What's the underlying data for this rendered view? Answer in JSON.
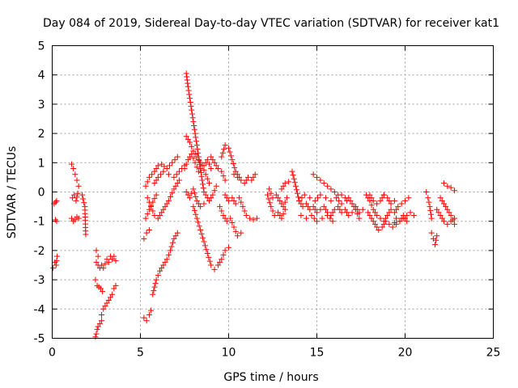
{
  "chart_data": {
    "type": "scatter",
    "title": "Day 084 of 2019, Sidereal Day-to-day VTEC variation (SDTVAR) for receiver kat1",
    "xlabel": "GPS time / hours",
    "ylabel": "SDTVAR / TECUs",
    "xlim": [
      0,
      25
    ],
    "ylim": [
      -5,
      5
    ],
    "xticks": [
      0,
      5,
      10,
      15,
      20,
      25
    ],
    "yticks": [
      -5,
      -4,
      -3,
      -2,
      -1,
      0,
      1,
      2,
      3,
      4,
      5
    ],
    "grid": true,
    "marker": "plus",
    "color": "#ff0000",
    "segments": [
      {
        "x": [
          0.05,
          0.15,
          0.22,
          0.28
        ],
        "y": [
          -2.6,
          -2.4,
          -2.5,
          -2.2
        ]
      },
      {
        "x": [
          0.1,
          0.2,
          0.25
        ],
        "y": [
          -0.4,
          -0.35,
          -0.3
        ]
      },
      {
        "x": [
          0.18,
          0.25
        ],
        "y": [
          -0.95,
          -1.0
        ]
      },
      {
        "x": [
          1.1,
          1.2,
          1.3,
          1.4,
          1.5
        ],
        "y": [
          0.95,
          0.8,
          0.6,
          0.4,
          0.2
        ]
      },
      {
        "x": [
          1.15,
          1.25,
          1.35,
          1.45
        ],
        "y": [
          -0.2,
          -0.1,
          -0.3,
          -0.05
        ]
      },
      {
        "x": [
          1.1,
          1.2,
          1.3,
          1.4,
          1.5
        ],
        "y": [
          -0.9,
          -1.0,
          -0.95,
          -0.85,
          -0.9
        ]
      },
      {
        "x": [
          1.7,
          1.85,
          1.9
        ],
        "y": [
          -0.1,
          -0.5,
          -1.45
        ]
      },
      {
        "x": [
          2.45,
          2.5,
          2.55,
          2.6,
          2.7,
          2.8
        ],
        "y": [
          -4.95,
          -4.85,
          -4.7,
          -4.6,
          -4.5,
          -4.4
        ]
      },
      {
        "x": [
          2.45,
          2.55,
          2.65,
          2.75,
          2.85
        ],
        "y": [
          -3.0,
          -3.2,
          -3.25,
          -3.3,
          -3.4
        ]
      },
      {
        "x": [
          2.5,
          2.6,
          2.7,
          2.8,
          2.9,
          3.0,
          3.1,
          3.2,
          3.3,
          3.4,
          3.5,
          3.6
        ],
        "y": [
          -2.4,
          -2.5,
          -2.6,
          -2.5,
          -2.6,
          -2.45,
          -2.3,
          -2.4,
          -2.2,
          -2.3,
          -2.2,
          -2.35
        ]
      },
      {
        "x": [
          2.5,
          2.6
        ],
        "y": [
          -2.0,
          -2.2
        ]
      },
      {
        "x": [
          2.8,
          2.9,
          3.0,
          3.1,
          3.2,
          3.3,
          3.4,
          3.5,
          3.6
        ],
        "y": [
          -4.2,
          -4.0,
          -3.9,
          -3.8,
          -3.7,
          -3.6,
          -3.5,
          -3.3,
          -3.2
        ]
      },
      {
        "x": [
          5.2,
          5.35,
          5.5,
          5.6
        ],
        "y": [
          -4.3,
          -4.4,
          -4.2,
          -4.05
        ]
      },
      {
        "x": [
          5.2,
          5.35,
          5.5
        ],
        "y": [
          -1.6,
          -1.4,
          -1.3
        ]
      },
      {
        "x": [
          5.3,
          5.5,
          5.7,
          5.9
        ],
        "y": [
          -0.9,
          -0.6,
          -0.35,
          -0.1
        ]
      },
      {
        "x": [
          5.7,
          5.9,
          6.1,
          6.3,
          6.5,
          6.7,
          6.9,
          7.1
        ],
        "y": [
          -3.5,
          -3.0,
          -2.7,
          -2.5,
          -2.3,
          -2.0,
          -1.6,
          -1.4
        ]
      },
      {
        "x": [
          5.3,
          5.5,
          5.8,
          6.0,
          6.2,
          6.5,
          6.8,
          7.1
        ],
        "y": [
          0.2,
          0.5,
          0.7,
          0.9,
          0.95,
          0.8,
          1.0,
          1.2
        ]
      },
      {
        "x": [
          5.4,
          5.6,
          5.8,
          6.0,
          6.3,
          6.6,
          6.9,
          7.2
        ],
        "y": [
          -0.2,
          -0.5,
          -0.8,
          -0.9,
          -0.6,
          -0.3,
          0.1,
          0.4
        ]
      },
      {
        "x": [
          5.8,
          6.0,
          6.3,
          6.6,
          6.9,
          7.2,
          7.5
        ],
        "y": [
          0.3,
          0.5,
          0.7,
          0.6,
          0.5,
          0.7,
          0.9
        ]
      },
      {
        "x": [
          7.6,
          7.7,
          7.8,
          7.9,
          8.0,
          8.1,
          8.2,
          8.3,
          8.4,
          8.5,
          8.6
        ],
        "y": [
          4.05,
          3.6,
          3.2,
          2.8,
          2.4,
          2.0,
          1.6,
          1.2,
          0.8,
          0.4,
          0.0
        ]
      },
      {
        "x": [
          7.6,
          7.8,
          8.0,
          8.2,
          8.4,
          8.6,
          8.8,
          9.0
        ],
        "y": [
          1.9,
          1.7,
          1.4,
          1.2,
          1.0,
          0.9,
          1.1,
          0.8
        ]
      },
      {
        "x": [
          7.5,
          7.7,
          7.9,
          8.1,
          8.3,
          8.5,
          8.7,
          8.9
        ],
        "y": [
          0.8,
          1.1,
          1.3,
          1.0,
          0.7,
          0.9,
          0.6,
          0.3
        ]
      },
      {
        "x": [
          7.6,
          7.8,
          8.0,
          8.2,
          8.4,
          8.6
        ],
        "y": [
          0.0,
          -0.2,
          0.1,
          -0.3,
          -0.5,
          -0.4
        ]
      },
      {
        "x": [
          8.0,
          8.2,
          8.4,
          8.6,
          8.8,
          9.0,
          9.2
        ],
        "y": [
          -0.5,
          -0.9,
          -1.3,
          -1.7,
          -2.1,
          -2.5,
          -2.65
        ]
      },
      {
        "x": [
          8.7,
          8.9,
          9.1,
          9.3
        ],
        "y": [
          -0.1,
          -0.3,
          -0.1,
          0.2
        ]
      },
      {
        "x": [
          9.0,
          9.2,
          9.4,
          9.6,
          9.8
        ],
        "y": [
          1.2,
          1.0,
          0.8,
          0.7,
          0.4
        ]
      },
      {
        "x": [
          9.4,
          9.6,
          9.8,
          10.0
        ],
        "y": [
          -2.5,
          -2.3,
          -2.0,
          -1.9
        ]
      },
      {
        "x": [
          9.5,
          9.7,
          9.9,
          10.1,
          10.3,
          10.5,
          10.7
        ],
        "y": [
          -0.5,
          -0.8,
          -1.0,
          -0.9,
          -1.2,
          -1.5,
          -1.4
        ]
      },
      {
        "x": [
          9.6,
          9.8,
          10.0,
          10.2,
          10.4,
          10.6
        ],
        "y": [
          1.2,
          1.6,
          1.5,
          1.1,
          0.7,
          0.5
        ]
      },
      {
        "x": [
          9.8,
          10.0,
          10.2,
          10.4
        ],
        "y": [
          -0.1,
          -0.3,
          -0.2,
          -0.4
        ]
      },
      {
        "x": [
          10.3,
          10.5,
          10.7,
          10.9,
          11.1,
          11.3,
          11.5
        ],
        "y": [
          0.6,
          0.5,
          0.4,
          0.3,
          0.5,
          0.4,
          0.6
        ]
      },
      {
        "x": [
          10.6,
          10.8,
          11.0,
          11.2,
          11.4,
          11.6
        ],
        "y": [
          -0.2,
          -0.5,
          -0.8,
          -0.9,
          -0.95,
          -0.9
        ]
      },
      {
        "x": [
          12.2,
          12.4,
          12.6,
          12.8,
          13.0,
          13.2
        ],
        "y": [
          -0.1,
          -0.5,
          -0.8,
          -0.7,
          -0.9,
          -0.6
        ]
      },
      {
        "x": [
          12.3,
          12.5,
          12.7,
          12.9,
          13.1,
          13.3
        ],
        "y": [
          0.1,
          -0.2,
          -0.1,
          -0.3,
          -0.5,
          -0.2
        ]
      },
      {
        "x": [
          13.0,
          13.2,
          13.4
        ],
        "y": [
          0.1,
          0.3,
          0.35
        ]
      },
      {
        "x": [
          13.6,
          13.8,
          14.0,
          14.2,
          14.4,
          14.6,
          14.8,
          15.0,
          15.2,
          15.4,
          15.6,
          15.8,
          16.0,
          16.2,
          16.4,
          16.6,
          16.8,
          17.0
        ],
        "y": [
          0.7,
          0.2,
          -0.3,
          -0.5,
          -0.4,
          -0.6,
          -0.5,
          -0.7,
          -0.6,
          -0.5,
          -0.7,
          -0.8,
          -0.6,
          -0.5,
          -0.7,
          -0.6,
          -0.8,
          -0.7
        ]
      },
      {
        "x": [
          14.0,
          14.3,
          14.6,
          14.9,
          15.2,
          15.5,
          15.8,
          16.1,
          16.4,
          16.7
        ],
        "y": [
          -0.3,
          -0.1,
          -0.2,
          -0.3,
          -0.1,
          -0.2,
          -0.3,
          -0.2,
          -0.4,
          -0.3
        ]
      },
      {
        "x": [
          14.8,
          15.0,
          15.2,
          15.4,
          15.6,
          15.8,
          16.0,
          16.2,
          16.4,
          16.6
        ],
        "y": [
          0.6,
          0.5,
          0.4,
          0.3,
          0.2,
          0.1,
          0.0,
          -0.1,
          -0.1,
          -0.2
        ]
      },
      {
        "x": [
          14.1,
          14.4,
          14.7,
          15.0,
          15.3,
          15.6,
          15.9
        ],
        "y": [
          -0.8,
          -0.9,
          -0.8,
          -1.0,
          -0.9,
          -0.8,
          -1.0
        ]
      },
      {
        "x": [
          16.8,
          17.0,
          17.2,
          17.4
        ],
        "y": [
          -0.2,
          -0.4,
          -0.6,
          -0.9
        ]
      },
      {
        "x": [
          17.2,
          17.4,
          17.6
        ],
        "y": [
          -0.5,
          -0.7,
          -0.6
        ]
      },
      {
        "x": [
          17.8,
          18.0,
          18.2,
          18.4,
          18.6,
          18.8,
          19.0,
          19.2,
          19.4,
          19.6,
          19.8,
          20.0,
          20.2
        ],
        "y": [
          -0.1,
          -0.3,
          -0.6,
          -0.8,
          -0.9,
          -1.0,
          -0.8,
          -0.6,
          -0.7,
          -0.5,
          -0.4,
          -0.3,
          -0.2
        ]
      },
      {
        "x": [
          17.9,
          18.1,
          18.3,
          18.5,
          18.7,
          18.9,
          19.1,
          19.3,
          19.5,
          19.7,
          19.9,
          20.1
        ],
        "y": [
          -0.7,
          -0.9,
          -1.1,
          -1.3,
          -1.2,
          -1.0,
          -1.1,
          -1.2,
          -0.9,
          -1.0,
          -0.8,
          -1.0
        ]
      },
      {
        "x": [
          18.0,
          18.2,
          18.4,
          18.6,
          18.8
        ],
        "y": [
          -0.1,
          -0.3,
          -0.4,
          -0.3,
          -0.1
        ]
      },
      {
        "x": [
          18.8,
          19.0,
          19.2,
          19.4
        ],
        "y": [
          -0.1,
          -0.2,
          -0.4,
          -0.3
        ]
      },
      {
        "x": [
          19.5,
          19.7,
          19.9,
          20.1,
          20.3,
          20.5
        ],
        "y": [
          -1.1,
          -1.0,
          -0.9,
          -0.8,
          -0.7,
          -0.8
        ]
      },
      {
        "x": [
          21.2,
          21.3,
          21.4,
          21.5
        ],
        "y": [
          0.0,
          -0.2,
          -0.5,
          -0.9
        ]
      },
      {
        "x": [
          21.5,
          21.6,
          21.7,
          21.8
        ],
        "y": [
          -1.4,
          -1.6,
          -1.8,
          -1.5
        ]
      },
      {
        "x": [
          21.8,
          22.0,
          22.2,
          22.4,
          22.6,
          22.8
        ],
        "y": [
          -0.6,
          -0.8,
          -1.0,
          -1.1,
          -1.0,
          -0.9
        ]
      },
      {
        "x": [
          22.0,
          22.2,
          22.4,
          22.6,
          22.8
        ],
        "y": [
          -0.2,
          -0.4,
          -0.6,
          -0.8,
          -1.1
        ]
      },
      {
        "x": [
          22.2,
          22.4,
          22.6,
          22.8
        ],
        "y": [
          0.3,
          0.2,
          0.15,
          0.05
        ]
      }
    ]
  }
}
